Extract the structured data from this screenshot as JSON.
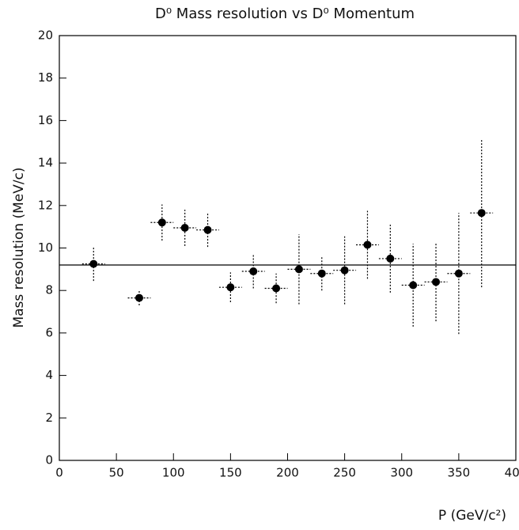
{
  "chart_data": {
    "type": "scatter",
    "title": "D⁰ Mass resolution vs D⁰ Momentum",
    "x_label": "P (GeV/c²)",
    "y_label": "Mass resolution (MeV/c)",
    "xlim": [
      0,
      400
    ],
    "xticks": [
      0,
      50,
      100,
      150,
      200,
      250,
      300,
      350,
      400
    ],
    "ylim": [
      0,
      20
    ],
    "yticks": [
      0,
      2,
      4,
      6,
      8,
      10,
      12,
      14,
      16,
      18,
      20
    ],
    "color": "#000000",
    "reference_line": 9.2,
    "x": [
      30,
      70,
      90,
      110,
      130,
      150,
      170,
      190,
      210,
      230,
      250,
      270,
      290,
      310,
      330,
      350,
      370
    ],
    "xerr": [
      10,
      10,
      10,
      10,
      10,
      10,
      10,
      10,
      10,
      10,
      10,
      10,
      10,
      10,
      10,
      10,
      10
    ],
    "values": [
      9.25,
      7.65,
      11.2,
      10.95,
      10.85,
      8.15,
      8.9,
      8.1,
      9.0,
      8.8,
      8.95,
      10.15,
      9.5,
      8.25,
      8.4,
      8.8,
      11.65
    ],
    "yerr": [
      0.8,
      0.35,
      0.85,
      0.85,
      0.8,
      0.7,
      0.8,
      0.7,
      1.65,
      0.8,
      1.6,
      1.6,
      1.6,
      1.95,
      1.85,
      2.85,
      3.5
    ]
  }
}
